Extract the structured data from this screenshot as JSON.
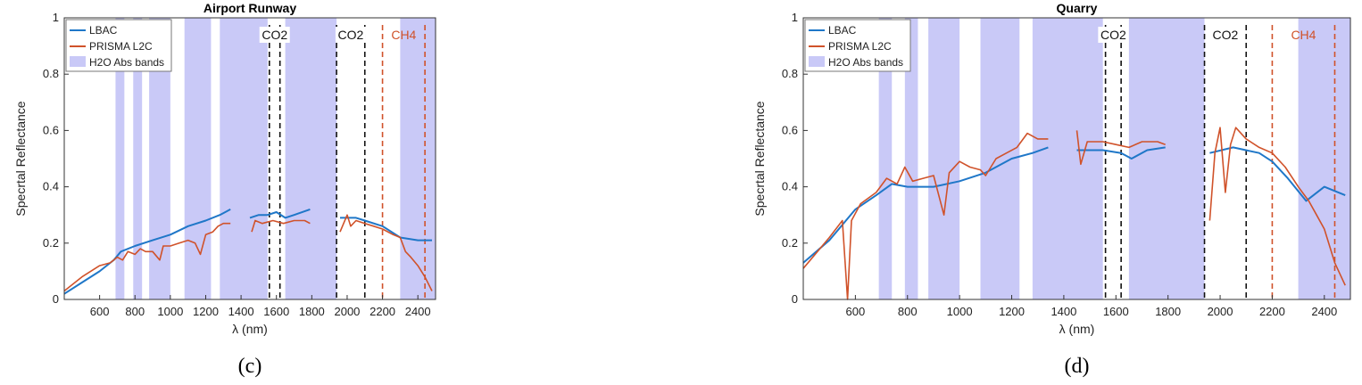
{
  "chart_data": [
    {
      "type": "line",
      "panel_label": "(c)",
      "title": "Airport Runway",
      "xlabel": "λ (nm)",
      "ylabel": "Specrtal Reflectance",
      "xlim": [
        400,
        2500
      ],
      "ylim": [
        0,
        1
      ],
      "xticks": [
        "600",
        "800",
        "1000",
        "1200",
        "1400",
        "1600",
        "1800",
        "2000",
        "2200",
        "2400"
      ],
      "yticks": [
        "0",
        "0.2",
        "0.4",
        "0.6",
        "0.8",
        "1"
      ],
      "legend": {
        "placement": "top-left",
        "entries": [
          "LBAC",
          "PRISMA L2C",
          "H2O Abs bands"
        ]
      },
      "h2o_bands": [
        [
          690,
          740
        ],
        [
          790,
          840
        ],
        [
          880,
          1000
        ],
        [
          1080,
          1230
        ],
        [
          1280,
          1550
        ],
        [
          1650,
          1940
        ],
        [
          2300,
          2500
        ]
      ],
      "co2_lines": [
        1560,
        1620,
        1940,
        2100
      ],
      "co2_labels": [
        "CO2",
        "CO2"
      ],
      "ch4_lines": [
        2200,
        2440
      ],
      "ch4_label": "CH4",
      "colors": {
        "lbac": "#1f77c8",
        "prisma": "#d0522a",
        "h2o": "#c9c9f7",
        "co2_line": "#111111",
        "ch4_line": "#d0522a"
      },
      "series": [
        {
          "name": "LBAC",
          "segments": [
            [
              [
                400,
                0.02
              ],
              [
                500,
                0.06
              ],
              [
                600,
                0.1
              ],
              [
                680,
                0.14
              ],
              [
                720,
                0.17
              ],
              [
                800,
                0.19
              ],
              [
                900,
                0.21
              ],
              [
                1000,
                0.23
              ],
              [
                1100,
                0.26
              ],
              [
                1200,
                0.28
              ],
              [
                1280,
                0.3
              ],
              [
                1340,
                0.32
              ]
            ],
            [
              [
                1450,
                0.29
              ],
              [
                1500,
                0.3
              ],
              [
                1550,
                0.3
              ],
              [
                1600,
                0.31
              ],
              [
                1650,
                0.29
              ],
              [
                1700,
                0.3
              ],
              [
                1790,
                0.32
              ]
            ],
            [
              [
                1960,
                0.29
              ],
              [
                2050,
                0.29
              ],
              [
                2100,
                0.28
              ],
              [
                2200,
                0.26
              ],
              [
                2300,
                0.22
              ],
              [
                2400,
                0.21
              ],
              [
                2480,
                0.21
              ]
            ]
          ]
        },
        {
          "name": "PRISMA L2C",
          "segments": [
            [
              [
                400,
                0.03
              ],
              [
                500,
                0.08
              ],
              [
                600,
                0.12
              ],
              [
                660,
                0.13
              ],
              [
                700,
                0.15
              ],
              [
                730,
                0.14
              ],
              [
                760,
                0.17
              ],
              [
                800,
                0.16
              ],
              [
                830,
                0.18
              ],
              [
                860,
                0.17
              ],
              [
                900,
                0.17
              ],
              [
                940,
                0.14
              ],
              [
                960,
                0.19
              ],
              [
                1000,
                0.19
              ],
              [
                1050,
                0.2
              ],
              [
                1100,
                0.21
              ],
              [
                1140,
                0.2
              ],
              [
                1170,
                0.16
              ],
              [
                1200,
                0.23
              ],
              [
                1240,
                0.24
              ],
              [
                1270,
                0.26
              ],
              [
                1300,
                0.27
              ],
              [
                1340,
                0.27
              ]
            ],
            [
              [
                1460,
                0.24
              ],
              [
                1480,
                0.28
              ],
              [
                1520,
                0.27
              ],
              [
                1580,
                0.28
              ],
              [
                1640,
                0.27
              ],
              [
                1700,
                0.28
              ],
              [
                1760,
                0.28
              ],
              [
                1790,
                0.27
              ]
            ],
            [
              [
                1960,
                0.24
              ],
              [
                1980,
                0.27
              ],
              [
                2000,
                0.3
              ],
              [
                2020,
                0.26
              ],
              [
                2050,
                0.28
              ],
              [
                2100,
                0.27
              ],
              [
                2150,
                0.26
              ],
              [
                2200,
                0.25
              ],
              [
                2260,
                0.23
              ],
              [
                2300,
                0.22
              ],
              [
                2330,
                0.17
              ],
              [
                2360,
                0.15
              ],
              [
                2400,
                0.12
              ],
              [
                2440,
                0.08
              ],
              [
                2480,
                0.03
              ]
            ]
          ]
        }
      ]
    },
    {
      "type": "line",
      "panel_label": "(d)",
      "title": "Quarry",
      "xlabel": "λ (nm)",
      "ylabel": "Specrtal Reflectance",
      "xlim": [
        400,
        2500
      ],
      "ylim": [
        0,
        1
      ],
      "xticks": [
        "600",
        "800",
        "1000",
        "1200",
        "1400",
        "1600",
        "1800",
        "2000",
        "2200",
        "2400"
      ],
      "yticks": [
        "0",
        "0.2",
        "0.4",
        "0.6",
        "0.8",
        "1"
      ],
      "legend": {
        "placement": "top-left",
        "entries": [
          "LBAC",
          "PRISMA L2C",
          "H2O Abs bands"
        ]
      },
      "h2o_bands": [
        [
          690,
          740
        ],
        [
          790,
          840
        ],
        [
          880,
          1000
        ],
        [
          1080,
          1230
        ],
        [
          1280,
          1550
        ],
        [
          1650,
          1940
        ],
        [
          2300,
          2500
        ]
      ],
      "co2_lines": [
        1560,
        1620,
        1940,
        2100
      ],
      "co2_labels": [
        "CO2",
        "CO2"
      ],
      "ch4_lines": [
        2200,
        2440
      ],
      "ch4_label": "CH4",
      "colors": {
        "lbac": "#1f77c8",
        "prisma": "#d0522a",
        "h2o": "#c9c9f7",
        "co2_line": "#111111",
        "ch4_line": "#d0522a"
      },
      "series": [
        {
          "name": "LBAC",
          "segments": [
            [
              [
                400,
                0.13
              ],
              [
                500,
                0.21
              ],
              [
                600,
                0.32
              ],
              [
                680,
                0.37
              ],
              [
                740,
                0.41
              ],
              [
                800,
                0.4
              ],
              [
                900,
                0.4
              ],
              [
                1000,
                0.42
              ],
              [
                1100,
                0.45
              ],
              [
                1200,
                0.5
              ],
              [
                1280,
                0.52
              ],
              [
                1340,
                0.54
              ]
            ],
            [
              [
                1450,
                0.53
              ],
              [
                1550,
                0.53
              ],
              [
                1620,
                0.52
              ],
              [
                1660,
                0.5
              ],
              [
                1720,
                0.53
              ],
              [
                1790,
                0.54
              ]
            ],
            [
              [
                1960,
                0.52
              ],
              [
                2050,
                0.54
              ],
              [
                2150,
                0.52
              ],
              [
                2200,
                0.49
              ],
              [
                2260,
                0.43
              ],
              [
                2330,
                0.35
              ],
              [
                2400,
                0.4
              ],
              [
                2480,
                0.37
              ]
            ]
          ]
        },
        {
          "name": "PRISMA L2C",
          "segments": [
            [
              [
                400,
                0.11
              ],
              [
                500,
                0.22
              ],
              [
                550,
                0.28
              ],
              [
                570,
                0.0
              ],
              [
                585,
                0.28
              ],
              [
                620,
                0.34
              ],
              [
                680,
                0.38
              ],
              [
                720,
                0.43
              ],
              [
                760,
                0.41
              ],
              [
                790,
                0.47
              ],
              [
                820,
                0.42
              ],
              [
                860,
                0.43
              ],
              [
                900,
                0.44
              ],
              [
                940,
                0.3
              ],
              [
                960,
                0.45
              ],
              [
                1000,
                0.49
              ],
              [
                1040,
                0.47
              ],
              [
                1080,
                0.46
              ],
              [
                1100,
                0.44
              ],
              [
                1140,
                0.5
              ],
              [
                1180,
                0.52
              ],
              [
                1220,
                0.54
              ],
              [
                1260,
                0.59
              ],
              [
                1300,
                0.57
              ],
              [
                1340,
                0.57
              ]
            ],
            [
              [
                1450,
                0.6
              ],
              [
                1465,
                0.48
              ],
              [
                1490,
                0.56
              ],
              [
                1550,
                0.56
              ],
              [
                1600,
                0.55
              ],
              [
                1650,
                0.54
              ],
              [
                1700,
                0.56
              ],
              [
                1760,
                0.56
              ],
              [
                1790,
                0.55
              ]
            ],
            [
              [
                1960,
                0.28
              ],
              [
                1980,
                0.52
              ],
              [
                2000,
                0.61
              ],
              [
                2020,
                0.38
              ],
              [
                2040,
                0.55
              ],
              [
                2060,
                0.61
              ],
              [
                2100,
                0.57
              ],
              [
                2150,
                0.54
              ],
              [
                2200,
                0.52
              ],
              [
                2250,
                0.47
              ],
              [
                2300,
                0.4
              ],
              [
                2340,
                0.35
              ],
              [
                2370,
                0.3
              ],
              [
                2400,
                0.25
              ],
              [
                2440,
                0.13
              ],
              [
                2480,
                0.05
              ]
            ]
          ]
        }
      ]
    }
  ]
}
